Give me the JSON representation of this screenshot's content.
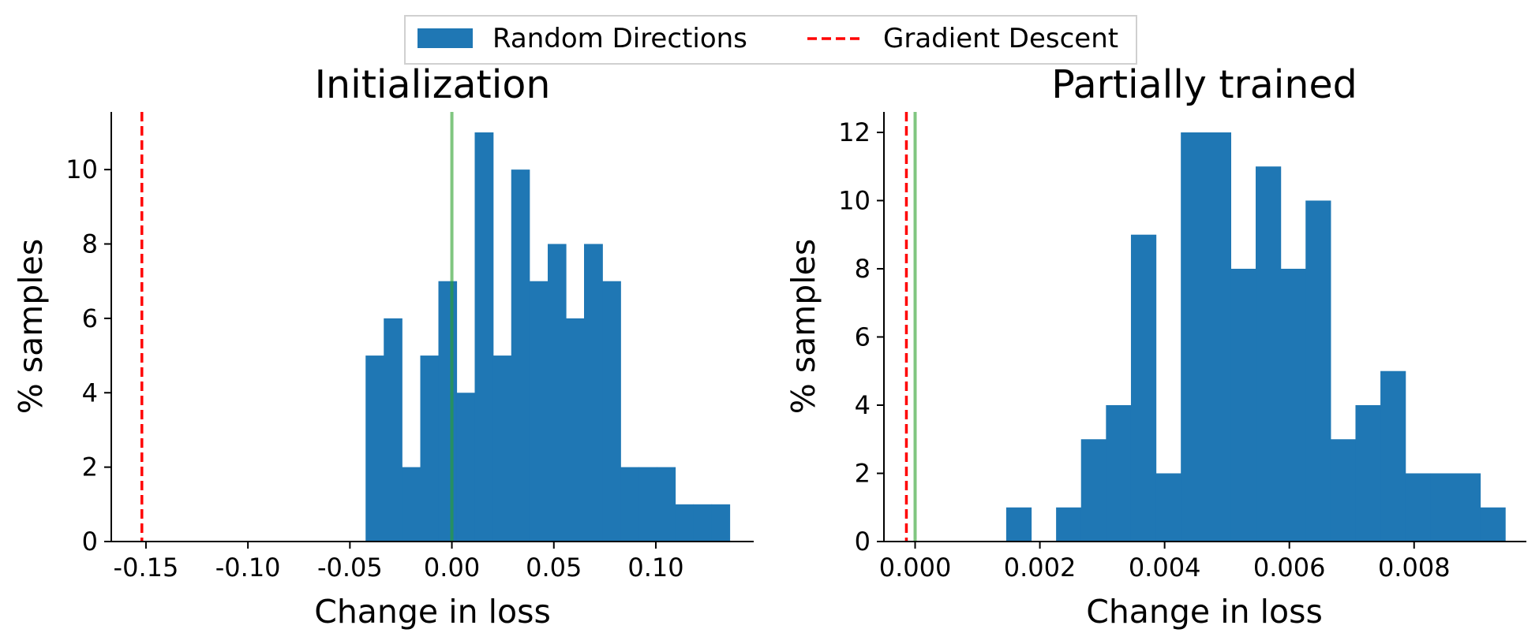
{
  "legend": {
    "placement": "top-center",
    "items": [
      {
        "label": "Random Directions",
        "kind": "patch",
        "color": "#1f77b4"
      },
      {
        "label": "Gradient Descent",
        "kind": "dashed-line",
        "color": "#ff0000"
      }
    ]
  },
  "colors": {
    "bars": "#1f77b4",
    "gradient_descent": "#ff0000",
    "zero_line": "#2ca02c"
  },
  "chart_data": [
    {
      "type": "bar",
      "title": "Initialization",
      "xlabel": "Change in loss",
      "ylabel": "% samples",
      "grid": false,
      "xlim": [
        -0.167,
        0.148
      ],
      "ylim": [
        0,
        11.55
      ],
      "xticks": [
        -0.15,
        -0.1,
        -0.05,
        0.0,
        0.05,
        0.1
      ],
      "xtick_labels": [
        "-0.15",
        "-0.10",
        "-0.05",
        "0.00",
        "0.05",
        "0.10"
      ],
      "yticks": [
        0,
        2,
        4,
        6,
        8,
        10
      ],
      "ytick_labels": [
        "0",
        "2",
        "4",
        "6",
        "8",
        "10"
      ],
      "bin_edges": [
        -0.0423,
        -0.0334,
        -0.0245,
        -0.0155,
        -0.0066,
        0.0023,
        0.0112,
        0.0202,
        0.0291,
        0.038,
        0.047,
        0.0559,
        0.0648,
        0.0738,
        0.0827,
        0.0916,
        0.1005,
        0.1095,
        0.1184,
        0.1273,
        0.1362
      ],
      "values": [
        5,
        6,
        2,
        5,
        7,
        4,
        11,
        5,
        10,
        7,
        8,
        6,
        8,
        7,
        2,
        2,
        2,
        1,
        1,
        1
      ],
      "gradient_descent_x": -0.152,
      "zero_line_x": 0.0
    },
    {
      "type": "bar",
      "title": "Partially trained",
      "xlabel": "Change in loss",
      "ylabel": "% samples",
      "grid": false,
      "xlim": [
        -0.0005,
        0.0098
      ],
      "ylim": [
        0,
        12.6
      ],
      "xticks": [
        0.0,
        0.002,
        0.004,
        0.006,
        0.008
      ],
      "xtick_labels": [
        "0.000",
        "0.002",
        "0.004",
        "0.006",
        "0.008"
      ],
      "yticks": [
        0,
        2,
        4,
        6,
        8,
        10,
        12
      ],
      "ytick_labels": [
        "0",
        "2",
        "4",
        "6",
        "8",
        "10",
        "12"
      ],
      "bin_edges": [
        0.00146,
        0.00186,
        0.00226,
        0.00266,
        0.00306,
        0.00346,
        0.00386,
        0.00426,
        0.00466,
        0.00506,
        0.00546,
        0.00586,
        0.00626,
        0.00666,
        0.00706,
        0.00746,
        0.00786,
        0.00826,
        0.00866,
        0.00906,
        0.00946
      ],
      "values": [
        1,
        0,
        1,
        3,
        4,
        9,
        2,
        12,
        12,
        8,
        11,
        8,
        10,
        3,
        4,
        5,
        2,
        2,
        2,
        1
      ],
      "gradient_descent_x": -0.00014,
      "zero_line_x": 0.0
    }
  ]
}
